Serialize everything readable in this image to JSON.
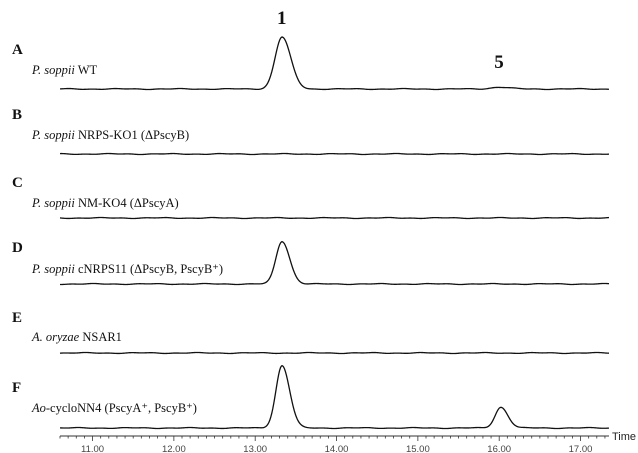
{
  "chart_data": {
    "type": "line",
    "title": "",
    "xlabel": "Time",
    "ylabel": "",
    "xlim": [
      10.6,
      17.35
    ],
    "x_ticks": [
      "11.00",
      "12.00",
      "13.00",
      "14.00",
      "15.00",
      "16.00",
      "17.00"
    ],
    "grid": false,
    "legend": "none",
    "peak_labels": [
      {
        "text": "1",
        "x": 13.33
      },
      {
        "text": "5",
        "x": 16.0
      }
    ],
    "series": [
      {
        "letter": "A",
        "label_italic": "P. soppii",
        "label_rest": " WT",
        "peaks": [
          {
            "x": 13.33,
            "height": 1.0,
            "width": 0.085
          },
          {
            "x": 16.0,
            "height": 0.035,
            "width": 0.1
          }
        ]
      },
      {
        "letter": "B",
        "label_italic": "P. soppii",
        "label_rest": " NRPS-KO1 (ΔPscyB)",
        "peaks": []
      },
      {
        "letter": "C",
        "label_italic": "P. soppii",
        "label_rest": " NM-KO4 (ΔPscyA)",
        "peaks": []
      },
      {
        "letter": "D",
        "label_italic": "P. soppii",
        "label_rest": " cNRPS11 (ΔPscyB, PscyB⁺)",
        "peaks": [
          {
            "x": 13.33,
            "height": 0.82,
            "width": 0.075
          }
        ]
      },
      {
        "letter": "E",
        "label_italic": "A. oryzae",
        "label_rest": " NSAR1",
        "peaks": []
      },
      {
        "letter": "F",
        "label_italic": "Ao",
        "label_rest": "-cycloNN4 (PscyA⁺, PscyB⁺)",
        "peaks": [
          {
            "x": 13.33,
            "height": 1.2,
            "width": 0.075
          },
          {
            "x": 16.02,
            "height": 0.4,
            "width": 0.07
          }
        ]
      }
    ]
  }
}
